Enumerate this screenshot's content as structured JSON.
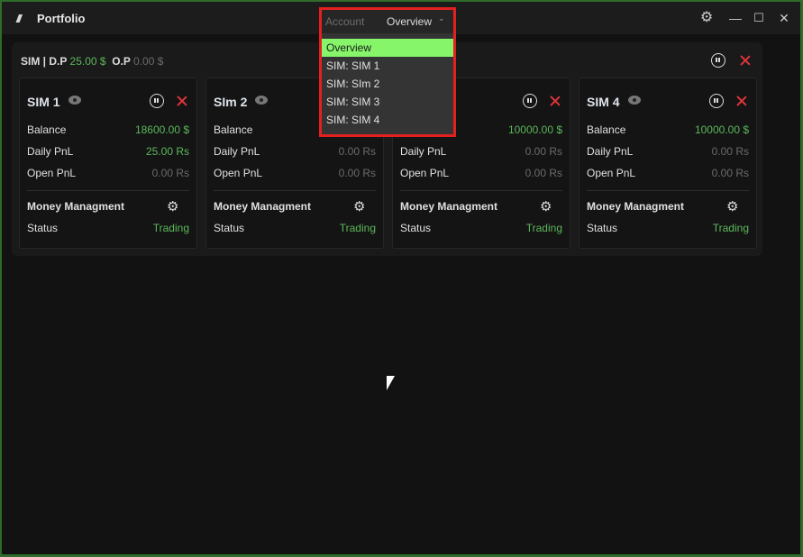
{
  "app": {
    "title": "Portfolio",
    "logo": "///"
  },
  "titlebar": {
    "icons": [
      "gear-icon",
      "minimize-icon",
      "maximize-icon",
      "close-icon"
    ]
  },
  "summary": {
    "account": "SIM",
    "dp_label": "D.P",
    "dp_value": "25.00 $",
    "op_label": "O.P",
    "op_value": "0.00 $"
  },
  "labels": {
    "balance": "Balance",
    "daily": "Daily PnL",
    "open": "Open PnL",
    "mm": "Money Managment",
    "status": "Status"
  },
  "cards": [
    {
      "name": "SIM 1",
      "balance": "18600.00 $",
      "daily": "25.00 Rs",
      "open": "0.00 Rs",
      "status": "Trading",
      "daily_positive": true
    },
    {
      "name": "SIm 2",
      "balance": "",
      "daily": "0.00 Rs",
      "open": "0.00 Rs",
      "status": "Trading",
      "daily_positive": false
    },
    {
      "name": "",
      "balance": "10000.00 $",
      "daily": "0.00 Rs",
      "open": "0.00 Rs",
      "status": "Trading",
      "daily_positive": false
    },
    {
      "name": "SIM 4",
      "balance": "10000.00 $",
      "daily": "0.00 Rs",
      "open": "0.00 Rs",
      "status": "Trading",
      "daily_positive": false
    }
  ],
  "dropdown": {
    "label": "Account",
    "value": "Overview",
    "options": [
      "Overview",
      "SIM: SIM 1",
      "SIM: SIm 2",
      "SIM: SIM 3",
      "SIM: SIM 4"
    ],
    "selected": 0
  },
  "colors": {
    "positive": "#5cb85c",
    "highlight": "#86f56a",
    "close": "#e0353a",
    "focus_border": "#e32020"
  }
}
